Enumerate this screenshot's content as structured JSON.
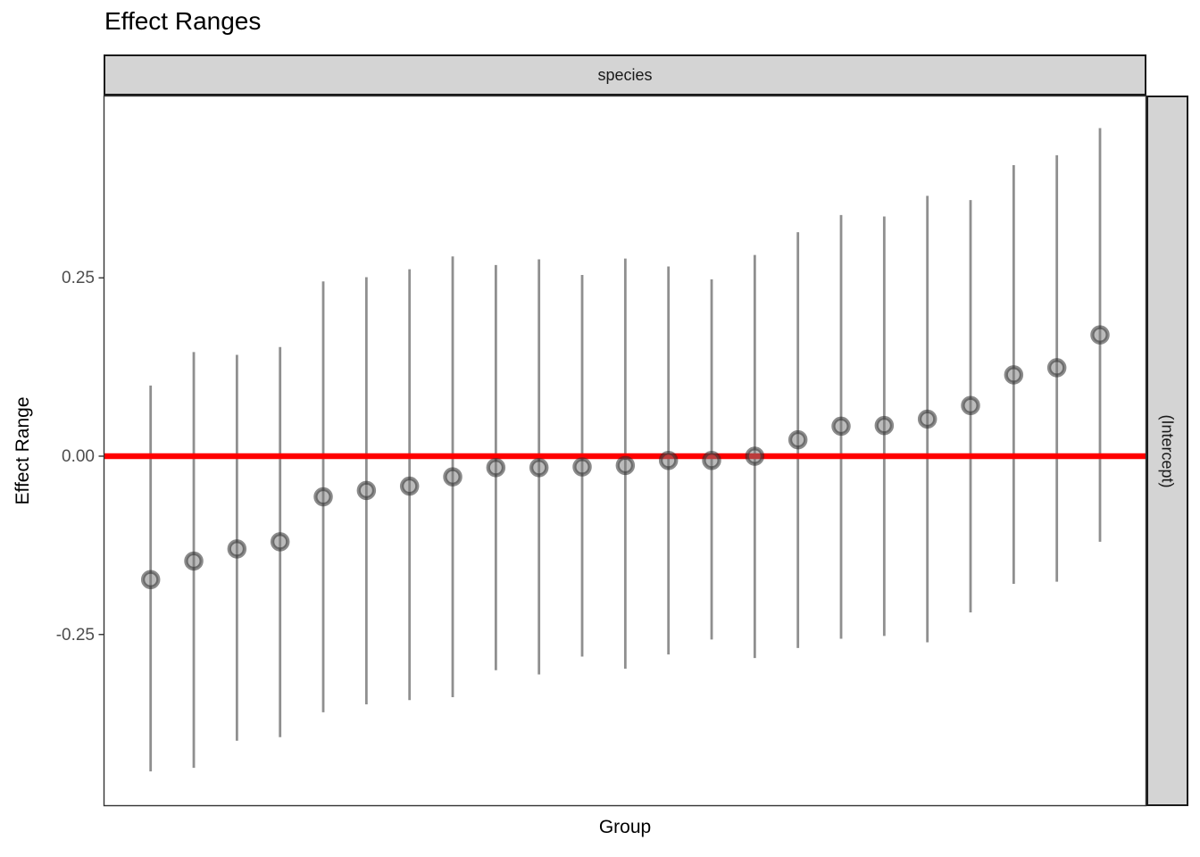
{
  "chart": {
    "title": "Effect Ranges",
    "xlabel": "Group",
    "ylabel": "Effect Range",
    "facet_top": "species",
    "facet_right": "(Intercept)"
  },
  "chart_data": {
    "type": "pointrange",
    "title": "Effect Ranges",
    "xlabel": "Group",
    "ylabel": "Effect Range",
    "facet_column_label": "species",
    "facet_row_label": "(Intercept)",
    "legend": "none",
    "grid": "off",
    "ylim": [
      -0.49,
      0.505
    ],
    "yticks": [
      {
        "label": "0.25",
        "value": 0.25
      },
      {
        "label": "0.00",
        "value": 0.0
      },
      {
        "label": "-0.25",
        "value": -0.25
      }
    ],
    "x_axis_tick_labels": "none",
    "reference_line_y": 0,
    "points": [
      {
        "estimate": -0.173,
        "lower": -0.442,
        "upper": 0.099
      },
      {
        "estimate": -0.147,
        "lower": -0.437,
        "upper": 0.146
      },
      {
        "estimate": -0.13,
        "lower": -0.399,
        "upper": 0.142
      },
      {
        "estimate": -0.12,
        "lower": -0.394,
        "upper": 0.153
      },
      {
        "estimate": -0.057,
        "lower": -0.359,
        "upper": 0.245
      },
      {
        "estimate": -0.048,
        "lower": -0.348,
        "upper": 0.251
      },
      {
        "estimate": -0.042,
        "lower": -0.342,
        "upper": 0.262
      },
      {
        "estimate": -0.029,
        "lower": -0.338,
        "upper": 0.28
      },
      {
        "estimate": -0.016,
        "lower": -0.3,
        "upper": 0.268
      },
      {
        "estimate": -0.016,
        "lower": -0.306,
        "upper": 0.276
      },
      {
        "estimate": -0.015,
        "lower": -0.281,
        "upper": 0.254
      },
      {
        "estimate": -0.013,
        "lower": -0.298,
        "upper": 0.277
      },
      {
        "estimate": -0.006,
        "lower": -0.278,
        "upper": 0.266
      },
      {
        "estimate": -0.006,
        "lower": -0.257,
        "upper": 0.248
      },
      {
        "estimate": 0.0,
        "lower": -0.283,
        "upper": 0.282
      },
      {
        "estimate": 0.023,
        "lower": -0.269,
        "upper": 0.314
      },
      {
        "estimate": 0.042,
        "lower": -0.256,
        "upper": 0.338
      },
      {
        "estimate": 0.043,
        "lower": -0.252,
        "upper": 0.336
      },
      {
        "estimate": 0.052,
        "lower": -0.261,
        "upper": 0.365
      },
      {
        "estimate": 0.071,
        "lower": -0.219,
        "upper": 0.359
      },
      {
        "estimate": 0.114,
        "lower": -0.179,
        "upper": 0.408
      },
      {
        "estimate": 0.124,
        "lower": -0.176,
        "upper": 0.422
      },
      {
        "estimate": 0.17,
        "lower": -0.12,
        "upper": 0.46
      }
    ],
    "colors": {
      "reference_line": "#FF0000",
      "interval_line": "#8F8F8F",
      "marker_fill": "#787878",
      "marker_stroke": "#2B2B2B",
      "panel_border": "#333333",
      "strip_fill": "#D4D4D4",
      "strip_border": "#1A1A1A",
      "tick_label": "#4D4D4D"
    }
  }
}
